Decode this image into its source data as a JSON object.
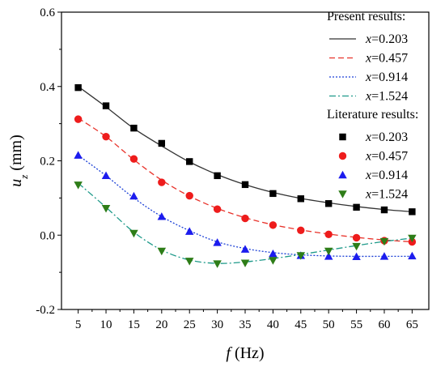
{
  "chart_data": {
    "type": "line",
    "xlabel_symbol": "f",
    "xlabel_unit": "(Hz)",
    "ylabel_symbol": "u",
    "ylabel_subscript": "z",
    "ylabel_unit": "(mm)",
    "xlim": [
      2,
      68
    ],
    "ylim": [
      -0.2,
      0.6
    ],
    "xticks": [
      5,
      10,
      15,
      20,
      25,
      30,
      35,
      40,
      45,
      50,
      55,
      60,
      65
    ],
    "yticks": [
      -0.2,
      0.0,
      0.2,
      0.4,
      0.6
    ],
    "ytick_labels": [
      "-0.2",
      "0.0",
      "0.2",
      "0.4",
      "0.6"
    ],
    "legend_placement": "top-right",
    "legend_headers": {
      "present": "Present results:",
      "literature": "Literature results:"
    },
    "x": [
      5,
      10,
      15,
      20,
      25,
      30,
      35,
      40,
      45,
      50,
      55,
      60,
      65
    ],
    "series": [
      {
        "name": "x=0.203",
        "var": "x",
        "val": "=0.203",
        "group": "present",
        "style": "solid",
        "color": "#333333",
        "values": [
          0.4,
          0.345,
          0.287,
          0.24,
          0.197,
          0.163,
          0.136,
          0.115,
          0.099,
          0.087,
          0.077,
          0.069,
          0.063
        ]
      },
      {
        "name": "x=0.457",
        "var": "x",
        "val": "=0.457",
        "group": "present",
        "style": "dashed",
        "color": "#e8322a",
        "values": [
          0.315,
          0.265,
          0.203,
          0.148,
          0.105,
          0.072,
          0.047,
          0.028,
          0.014,
          0.003,
          -0.006,
          -0.013,
          -0.018
        ]
      },
      {
        "name": "x=0.914",
        "var": "x",
        "val": "=0.914",
        "group": "present",
        "style": "dotted",
        "color": "#1a3fd6",
        "values": [
          0.215,
          0.16,
          0.1,
          0.05,
          0.012,
          -0.018,
          -0.036,
          -0.047,
          -0.053,
          -0.056,
          -0.057,
          -0.057,
          -0.057
        ]
      },
      {
        "name": "x=1.524",
        "var": "x",
        "val": "=1.524",
        "group": "present",
        "style": "dashdot",
        "color": "#1f9a8a",
        "values": [
          0.14,
          0.075,
          0.008,
          -0.04,
          -0.067,
          -0.076,
          -0.072,
          -0.063,
          -0.052,
          -0.04,
          -0.028,
          -0.017,
          -0.008
        ]
      },
      {
        "name": "x=0.203",
        "var": "x",
        "val": "=0.203",
        "group": "literature",
        "marker": "square",
        "color": "#000000",
        "values": [
          0.397,
          0.348,
          0.288,
          0.247,
          0.198,
          0.16,
          0.136,
          0.112,
          0.098,
          0.085,
          0.075,
          0.068,
          0.063
        ]
      },
      {
        "name": "x=0.457",
        "var": "x",
        "val": "=0.457",
        "group": "literature",
        "marker": "circle",
        "color": "#ee1c1c",
        "values": [
          0.312,
          0.265,
          0.205,
          0.142,
          0.106,
          0.07,
          0.045,
          0.027,
          0.013,
          0.002,
          -0.007,
          -0.015,
          -0.018
        ]
      },
      {
        "name": "x=0.914",
        "var": "x",
        "val": "=0.914",
        "group": "literature",
        "marker": "triangle-up",
        "color": "#1c1cee",
        "values": [
          0.215,
          0.16,
          0.105,
          0.05,
          0.01,
          -0.02,
          -0.038,
          -0.05,
          -0.055,
          -0.057,
          -0.058,
          -0.057,
          -0.056
        ]
      },
      {
        "name": "x=1.524",
        "var": "x",
        "val": "=1.524",
        "group": "literature",
        "marker": "triangle-down",
        "color": "#2e7d18",
        "values": [
          0.135,
          0.072,
          0.005,
          -0.043,
          -0.07,
          -0.077,
          -0.075,
          -0.068,
          -0.055,
          -0.043,
          -0.03,
          -0.017,
          -0.008
        ]
      }
    ]
  }
}
